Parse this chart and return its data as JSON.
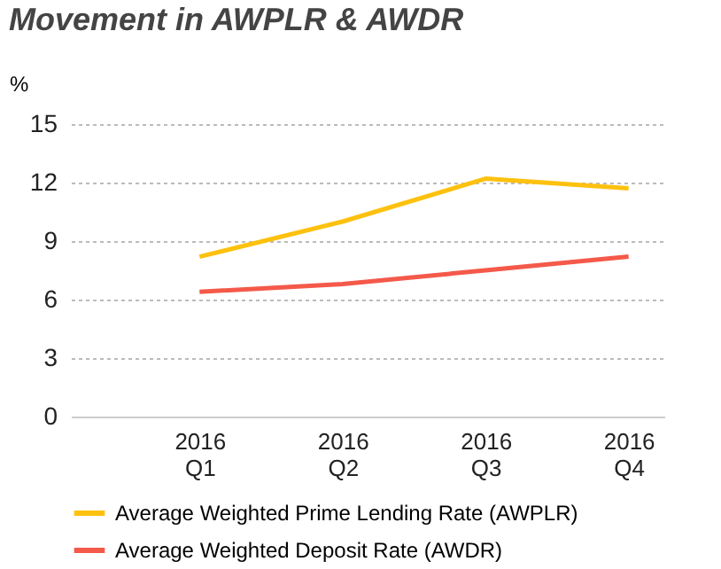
{
  "chart_data": {
    "type": "line",
    "title": "Movement in AWPLR & AWDR",
    "ylabel": "%",
    "categories": [
      "2016\nQ1",
      "2016\nQ2",
      "2016\nQ3",
      "2016\nQ4"
    ],
    "series": [
      {
        "name": "Average Weighted Prime Lending Rate (AWPLR)",
        "color": "#fdc10e",
        "values": [
          8.2,
          10.0,
          12.2,
          11.7
        ]
      },
      {
        "name": "Average Weighted Deposit Rate (AWDR)",
        "color": "#f4594a",
        "values": [
          6.4,
          6.8,
          7.5,
          8.2
        ]
      }
    ],
    "ylim": [
      0,
      15
    ],
    "yticks": [
      0,
      3,
      6,
      9,
      12,
      15
    ],
    "grid": "y",
    "legend": "bottom",
    "marker": "none",
    "line_style": "solid"
  }
}
